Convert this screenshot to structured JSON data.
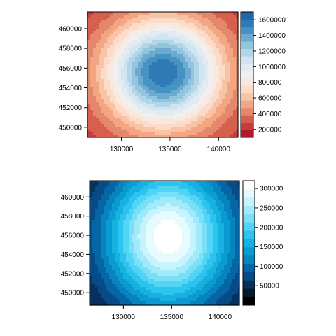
{
  "chart_data": [
    {
      "type": "heatmap",
      "title": "",
      "xlabel": "",
      "ylabel": "",
      "xlim": [
        126500,
        142000
      ],
      "ylim": [
        449000,
        461700
      ],
      "x_ticks": [
        {
          "value": 130000,
          "label": "130000"
        },
        {
          "value": 135000,
          "label": "135000"
        },
        {
          "value": 140000,
          "label": "140000"
        }
      ],
      "y_ticks": [
        {
          "value": 450000,
          "label": "450000"
        },
        {
          "value": 452000,
          "label": "452000"
        },
        {
          "value": 454000,
          "label": "454000"
        },
        {
          "value": 456000,
          "label": "456000"
        },
        {
          "value": 458000,
          "label": "458000"
        },
        {
          "value": 460000,
          "label": "460000"
        }
      ],
      "colorbar": {
        "range": [
          100000,
          1700000
        ],
        "ticks": [
          {
            "value": 200000,
            "label": "200000"
          },
          {
            "value": 400000,
            "label": "400000"
          },
          {
            "value": 600000,
            "label": "600000"
          },
          {
            "value": 800000,
            "label": "800000"
          },
          {
            "value": 1000000,
            "label": "1000000"
          },
          {
            "value": 1200000,
            "label": "1200000"
          },
          {
            "value": 1400000,
            "label": "1400000"
          },
          {
            "value": 1600000,
            "label": "1600000"
          }
        ],
        "colors": [
          "#b2182b",
          "#c43c3e",
          "#d6604d",
          "#e4886d",
          "#f4a582",
          "#f8c4a7",
          "#fddbc7",
          "#f7e8e0",
          "#f0f0f0",
          "#e2ebf1",
          "#d1e5f0",
          "#b3d5e8",
          "#92c5de",
          "#6fa9cf",
          "#4393c3",
          "#2f79b5",
          "#2166ac"
        ]
      },
      "surface": {
        "peak_value": 1600000,
        "peak_x": 134300,
        "peak_y": 455500,
        "sigma_x": 4200,
        "sigma_y": 3800,
        "base_value": 200000
      }
    },
    {
      "type": "heatmap",
      "title": "",
      "xlabel": "",
      "ylabel": "",
      "xlim": [
        126500,
        142000
      ],
      "ylim": [
        448700,
        461700
      ],
      "x_ticks": [
        {
          "value": 130000,
          "label": "130000"
        },
        {
          "value": 135000,
          "label": "135000"
        },
        {
          "value": 140000,
          "label": "140000"
        }
      ],
      "y_ticks": [
        {
          "value": 450000,
          "label": "450000"
        },
        {
          "value": 452000,
          "label": "452000"
        },
        {
          "value": 454000,
          "label": "454000"
        },
        {
          "value": 456000,
          "label": "456000"
        },
        {
          "value": 458000,
          "label": "458000"
        },
        {
          "value": 460000,
          "label": "460000"
        }
      ],
      "colorbar": {
        "range": [
          0,
          320000
        ],
        "ticks": [
          {
            "value": 50000,
            "label": "50000"
          },
          {
            "value": 100000,
            "label": "100000"
          },
          {
            "value": 150000,
            "label": "150000"
          },
          {
            "value": 200000,
            "label": "200000"
          },
          {
            "value": 250000,
            "label": "250000"
          },
          {
            "value": 300000,
            "label": "300000"
          }
        ],
        "colors": [
          "#000000",
          "#05192e",
          "#08305a",
          "#064a86",
          "#0565a5",
          "#0784be",
          "#0a9bd0",
          "#16b1e0",
          "#2cc4ee",
          "#52d4f4",
          "#7ae0f7",
          "#a0eafa",
          "#c6f3fc",
          "#e6fbfe",
          "#ffffff"
        ]
      },
      "surface": {
        "peak_value": 315000,
        "peak_x": 134600,
        "peak_y": 455800,
        "sigma_x": 4600,
        "sigma_y": 5200,
        "base_value": 15000
      }
    }
  ]
}
